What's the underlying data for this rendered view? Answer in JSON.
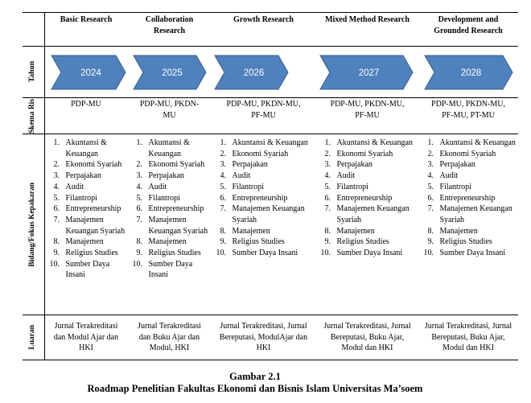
{
  "row_labels": {
    "tahun": "Tahun",
    "skema": "Skema Riset",
    "bidang": "Bidang/Fokus Kepakaran",
    "luaran": "Luaran"
  },
  "columns": [
    {
      "header": "Basic Research",
      "year": 2024,
      "skema": "PDP-MU",
      "bidang": [
        "Akuntansi & Keuangan",
        "Ekonomi Syariah",
        "Perpajakan",
        "Audit",
        "Filantropi",
        "Entrepreneurship",
        "Manajemen Keuangan Syariah",
        "Manajemen",
        "Religius Studies",
        "Sumber Daya Insani"
      ],
      "luaran": "Jurnal Terakreditasi dan Modul Ajar dan HKI"
    },
    {
      "header": "Collaboration Research",
      "year": 2025,
      "skema": "PDP-MU, PKDN-MU",
      "bidang": [
        "Akuntansi & Keuangan",
        "Ekonomi Syariah",
        "Perpajakan",
        "Audit",
        "Filantropi",
        "Entrepreneurship",
        "Manajemen Keuangan Syariah",
        "Manajemen",
        "Religius Studies",
        "Sumber Daya Insani"
      ],
      "luaran": "Jurnal Terakreditasi dan Buku Ajar dan Modul, HKI"
    },
    {
      "header": "Growth Research",
      "year": 2026,
      "skema": "PDP-MU, PKDN-MU, PF-MU",
      "bidang": [
        "Akuntansi & Keuangan",
        "Ekonomi Syariah",
        "Perpajakan",
        "Audit",
        "Filantropi",
        "Entrepreneurship",
        "Manajemen Keuangan Syariah",
        "Manajemen",
        "Religius Studies",
        "Sumber Daya Insani"
      ],
      "luaran": "Jurnal Terakreditasi, Jurnal Bereputasi, ModulAjar dan HKI"
    },
    {
      "header": "Mixed Method Research",
      "year": 2027,
      "skema": "PDP-MU, PKDN-MU, PF-MU",
      "bidang": [
        "Akuntansi & Keuangan",
        "Ekonomi Syariah",
        "Perpajakan",
        "Audit",
        "Filantropi",
        "Entrepreneurship",
        "Manajemen Keuangan Syariah",
        "Manajemen",
        "Religius Studies",
        "Sumber Daya Insani"
      ],
      "luaran": "Jurnal Terakreditasi, Jurnal Bereputasi, Buku Ajar, Modul dan HKI"
    },
    {
      "header": "Development and Grounded Research",
      "year": 2028,
      "skema": "PDP-MU, PKDN-MU, PF-MU, PT-MU",
      "bidang": [
        "Akuntansi & Keuangan",
        "Ekonomi Syariah",
        "Perpajakan",
        "Audit",
        "Filantropi",
        "Entrepreneurship",
        "Manajemen Keuangan Syariah",
        "Manajemen",
        "Religius Studies",
        "Sumber Daya Insani"
      ],
      "luaran": "Jurnal Terakreditasi, Jurnal Bereputasi, Buku Ajar, Modul dan HKI"
    }
  ],
  "caption": {
    "number": "Gambar 2.1",
    "title": "Roadmap Penelitian Fakultas Ekonomi dan Bisnis Islam Universitas Ma’soem"
  }
}
